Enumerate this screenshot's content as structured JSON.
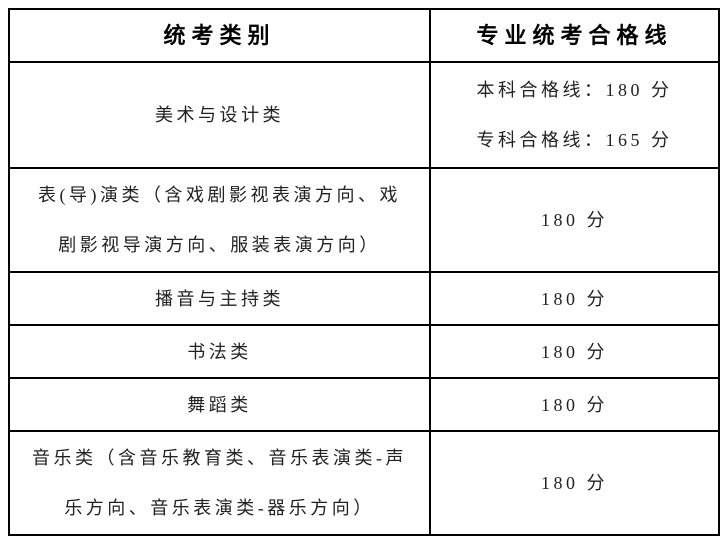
{
  "colors": {
    "background": "#ffffff",
    "grid_line": "#000000",
    "header_text": "#000000",
    "body_text": "#222222"
  },
  "table": {
    "headers": [
      "统考类别",
      "专业统考合格线"
    ],
    "rows": [
      {
        "category": "美术与设计类",
        "category_lines": [
          "美术与设计类"
        ],
        "score_lines": [
          "本科合格线：180 分",
          "专科合格线：165 分"
        ]
      },
      {
        "category": "表(导)演类（含戏剧影视表演方向、戏剧影视导演方向、服装表演方向）",
        "category_lines": [
          "表(导)演类（含戏剧影视表演方向、戏",
          "剧影视导演方向、服装表演方向）"
        ],
        "score_lines": [
          "180 分"
        ]
      },
      {
        "category": "播音与主持类",
        "category_lines": [
          "播音与主持类"
        ],
        "score_lines": [
          "180 分"
        ]
      },
      {
        "category": "书法类",
        "category_lines": [
          "书法类"
        ],
        "score_lines": [
          "180 分"
        ]
      },
      {
        "category": "舞蹈类",
        "category_lines": [
          "舞蹈类"
        ],
        "score_lines": [
          "180 分"
        ]
      },
      {
        "category": "音乐类（含音乐教育类、音乐表演类-声乐方向、音乐表演类-器乐方向）",
        "category_lines": [
          "音乐类（含音乐教育类、音乐表演类-声",
          "乐方向、音乐表演类-器乐方向）"
        ],
        "score_lines": [
          "180 分"
        ]
      }
    ]
  }
}
